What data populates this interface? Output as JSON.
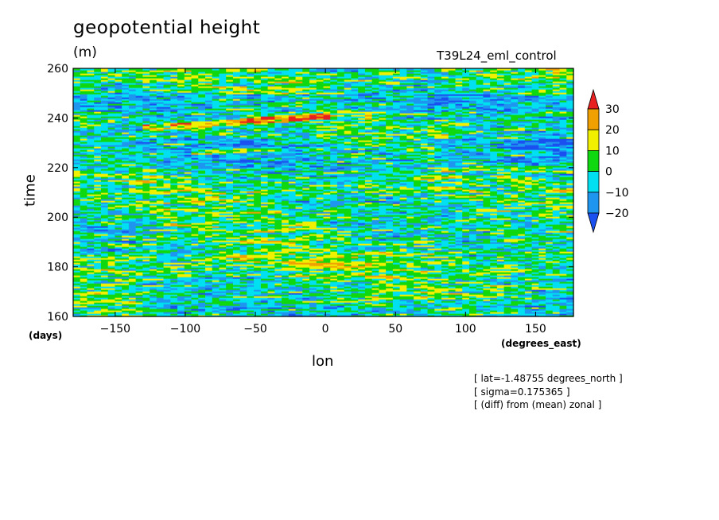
{
  "chart_data": {
    "type": "heatmap",
    "title": "geopotential height",
    "units": "(m)",
    "run_name": "T39L24_eml_control",
    "xlabel": "lon",
    "xunits": "(degrees_east)",
    "ylabel": "time",
    "yunits": "(days)",
    "xlim": [
      -180,
      177
    ],
    "ylim": [
      160,
      260
    ],
    "xticks": [
      -150,
      -100,
      -50,
      0,
      50,
      100,
      150
    ],
    "yticks": [
      160,
      180,
      200,
      220,
      240,
      260
    ],
    "colorbar": {
      "levels": [
        -20,
        -10,
        0,
        10,
        20,
        30
      ],
      "labels": [
        "30",
        "20",
        "10",
        "0",
        "−10",
        "−20"
      ],
      "colors": [
        "#1a50f0",
        "#1e96f0",
        "#00e0f0",
        "#10d810",
        "#f0f000",
        "#f0a000",
        "#e82020"
      ],
      "extend": "both"
    },
    "annotations": [
      "[ lat=-1.48755 degrees_north ]",
      "[ sigma=0.175365 ]",
      "[ (diff) from (mean) zonal ]"
    ],
    "features": [
      {
        "kind": "positive-anomaly streak",
        "lon": [
          -130,
          5
        ],
        "time": [
          236,
          241
        ]
      },
      {
        "kind": "positive-anomaly streak",
        "lon": [
          -95,
          -30
        ],
        "time": [
          226,
          228
        ]
      },
      {
        "kind": "negative-anomaly band",
        "lon": [
          -180,
          177
        ],
        "time": [
          220,
          232
        ]
      },
      {
        "kind": "negative-anomaly band",
        "lon": [
          -180,
          177
        ],
        "time": [
          243,
          250
        ]
      }
    ]
  }
}
